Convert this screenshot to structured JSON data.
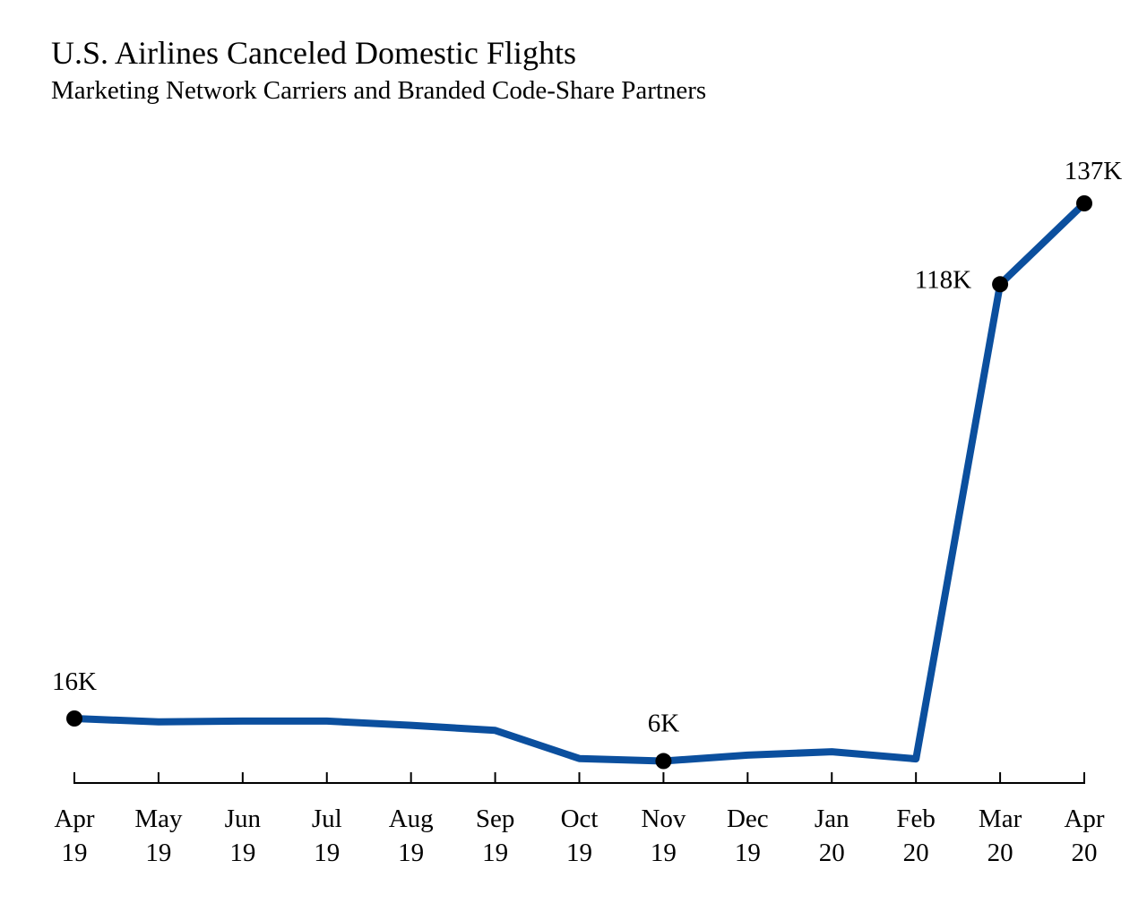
{
  "chart_data": {
    "type": "line",
    "title": "U.S. Airlines Canceled Domestic Flights",
    "subtitle": "Marketing Network Carriers and Branded Code-Share Partners",
    "categories": [
      [
        "Apr",
        "19"
      ],
      [
        "May",
        "19"
      ],
      [
        "Jun",
        "19"
      ],
      [
        "Jul",
        "19"
      ],
      [
        "Aug",
        "19"
      ],
      [
        "Sep",
        "19"
      ],
      [
        "Oct",
        "19"
      ],
      [
        "Nov",
        "19"
      ],
      [
        "Dec",
        "19"
      ],
      [
        "Jan",
        "20"
      ],
      [
        "Feb",
        "20"
      ],
      [
        "Mar",
        "20"
      ],
      [
        "Apr",
        "20"
      ]
    ],
    "series": [
      {
        "color": "#0b4f9e",
        "values": [
          16,
          15.2,
          15.4,
          15.4,
          14.4,
          13.2,
          6.6,
          6,
          7.4,
          8.2,
          6.5,
          118,
          137
        ]
      }
    ],
    "annotations": [
      {
        "index": 0,
        "label": "16K"
      },
      {
        "index": 7,
        "label": "6K"
      },
      {
        "index": 11,
        "label": "118K"
      },
      {
        "index": 12,
        "label": "137K"
      }
    ],
    "ylim": [
      0,
      145
    ],
    "unit": "K",
    "grid": false,
    "legend": "none"
  }
}
